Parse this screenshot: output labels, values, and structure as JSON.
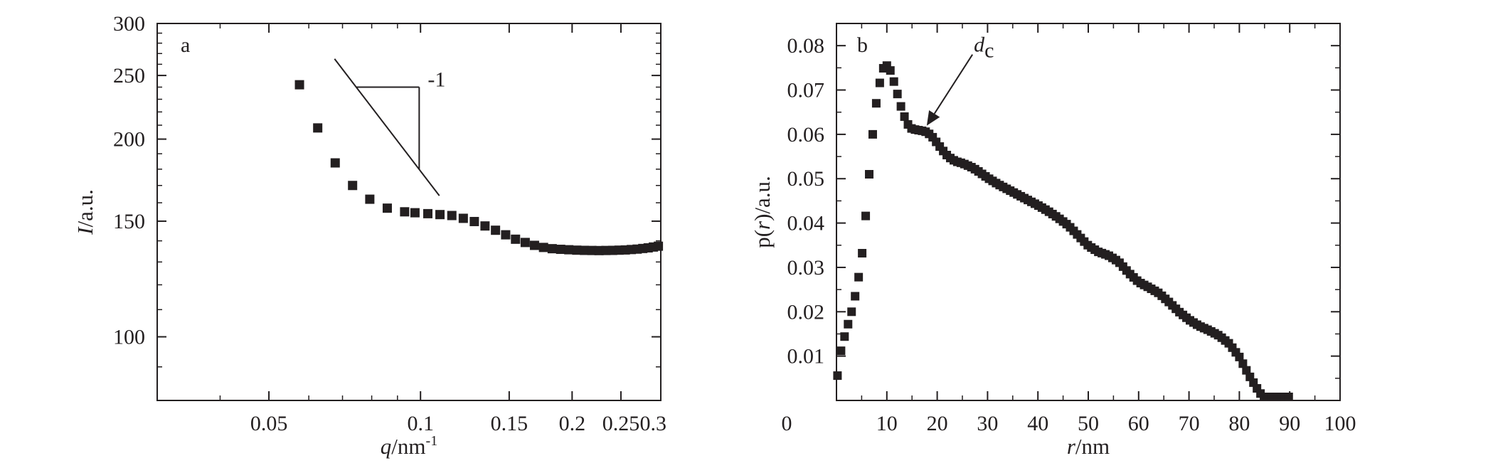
{
  "colors": {
    "ink": "#231f20",
    "marker": "#231f20",
    "background": "#ffffff"
  },
  "chart_data": [
    {
      "type": "scatter",
      "panel_label": "a",
      "xscale": "log",
      "yscale": "log",
      "xlim": [
        0.03,
        0.3
      ],
      "ylim": [
        80,
        300
      ],
      "xticks": [
        0.05,
        0.1,
        0.15,
        0.2,
        0.25,
        0.3
      ],
      "xtick_labels": [
        "0.05",
        "0.1",
        "0.15",
        "0.2",
        "0.25",
        "0.3"
      ],
      "yticks": [
        100,
        150,
        200,
        250,
        300
      ],
      "ytick_labels": [
        "100",
        "150",
        "200",
        "250",
        "300"
      ],
      "xlabel": {
        "var": "q",
        "unit": "/nm",
        "sup": "-1"
      },
      "ylabel": {
        "var": "I",
        "unit": "/a.u."
      },
      "slope_annotation": {
        "label": "-1",
        "line_from": [
          0.0675,
          265
        ],
        "line_to": [
          0.109,
          164
        ],
        "corner": [
          0.0745,
          240
        ],
        "vertical_bottom": [
          0.0994,
          180
        ]
      },
      "series": [
        {
          "x": [
            0.0575,
            0.0625,
            0.0677,
            0.0733,
            0.0793,
            0.0859,
            0.093,
            0.0975,
            0.1034,
            0.1093,
            0.1154,
            0.1216,
            0.1279,
            0.1343,
            0.1409,
            0.1476,
            0.1544,
            0.1614,
            0.1684,
            0.1755,
            0.1826,
            0.1898,
            0.197,
            0.2043,
            0.2116,
            0.2189,
            0.2262,
            0.2335,
            0.2407,
            0.2479,
            0.2551,
            0.2622,
            0.2693,
            0.2763,
            0.2832,
            0.29,
            0.2967
          ],
          "y": [
            242,
            208,
            184,
            170,
            162,
            157,
            155,
            154.5,
            154,
            153.5,
            153,
            151.5,
            149.8,
            147.5,
            145.3,
            143,
            140.8,
            139.2,
            137.8,
            136.8,
            136.2,
            135.9,
            135.7,
            135.5,
            135.4,
            135.35,
            135.3,
            135.35,
            135.4,
            135.5,
            135.6,
            135.8,
            136,
            136.3,
            136.6,
            137,
            137.4
          ]
        }
      ]
    },
    {
      "type": "scatter",
      "panel_label": "b",
      "xlim": [
        0,
        100
      ],
      "ylim": [
        0,
        0.085
      ],
      "xticks": [
        0,
        10,
        20,
        30,
        40,
        50,
        60,
        70,
        80,
        90,
        100
      ],
      "xtick_labels": [
        "0",
        "10",
        "20",
        "30",
        "40",
        "50",
        "60",
        "70",
        "80",
        "90",
        "100"
      ],
      "yticks": [
        0.01,
        0.02,
        0.03,
        0.04,
        0.05,
        0.06,
        0.07,
        0.08
      ],
      "ytick_labels": [
        "0.01",
        "0.02",
        "0.03",
        "0.04",
        "0.05",
        "0.06",
        "0.07",
        "0.08"
      ],
      "xlabel": {
        "var": "r",
        "unit": "/nm"
      },
      "ylabel": {
        "pre": "p(",
        "var": "r",
        "post": ")/a.u."
      },
      "peak_annotation": {
        "label_main": "d",
        "label_sub": "c",
        "points_to": [
          17.5,
          0.061
        ],
        "arrow_from": [
          27,
          0.078
        ]
      },
      "curve_keypoints": {
        "x": [
          0,
          1,
          2,
          3,
          4,
          5,
          6,
          7,
          8,
          9,
          9.5,
          10,
          10.5,
          11,
          12,
          13,
          14,
          15,
          16,
          17,
          18,
          19,
          20,
          21,
          22,
          23,
          24,
          25,
          26,
          27,
          28,
          30,
          32,
          35,
          38,
          40,
          42,
          44,
          46,
          48,
          50,
          52,
          54,
          56,
          58,
          60,
          62,
          64,
          66,
          68,
          70,
          72,
          74,
          76,
          78,
          80,
          82,
          84,
          85,
          86,
          87,
          88,
          89,
          90
        ],
        "y": [
          0.004,
          0.012,
          0.016,
          0.02,
          0.025,
          0.032,
          0.044,
          0.058,
          0.068,
          0.074,
          0.0755,
          0.0755,
          0.075,
          0.0735,
          0.0695,
          0.0655,
          0.0625,
          0.0612,
          0.061,
          0.0608,
          0.0605,
          0.0595,
          0.058,
          0.0565,
          0.0552,
          0.0543,
          0.0538,
          0.0535,
          0.053,
          0.0525,
          0.0518,
          0.0502,
          0.0488,
          0.047,
          0.0452,
          0.044,
          0.0427,
          0.0412,
          0.0395,
          0.0372,
          0.0349,
          0.0335,
          0.0327,
          0.0313,
          0.0288,
          0.0267,
          0.0255,
          0.0242,
          0.0222,
          0.02,
          0.0182,
          0.0168,
          0.0158,
          0.0146,
          0.0128,
          0.0098,
          0.0055,
          0.0018,
          0.0006,
          0.0003,
          0.00015,
          8e-05,
          4e-05,
          2e-05
        ]
      }
    }
  ]
}
